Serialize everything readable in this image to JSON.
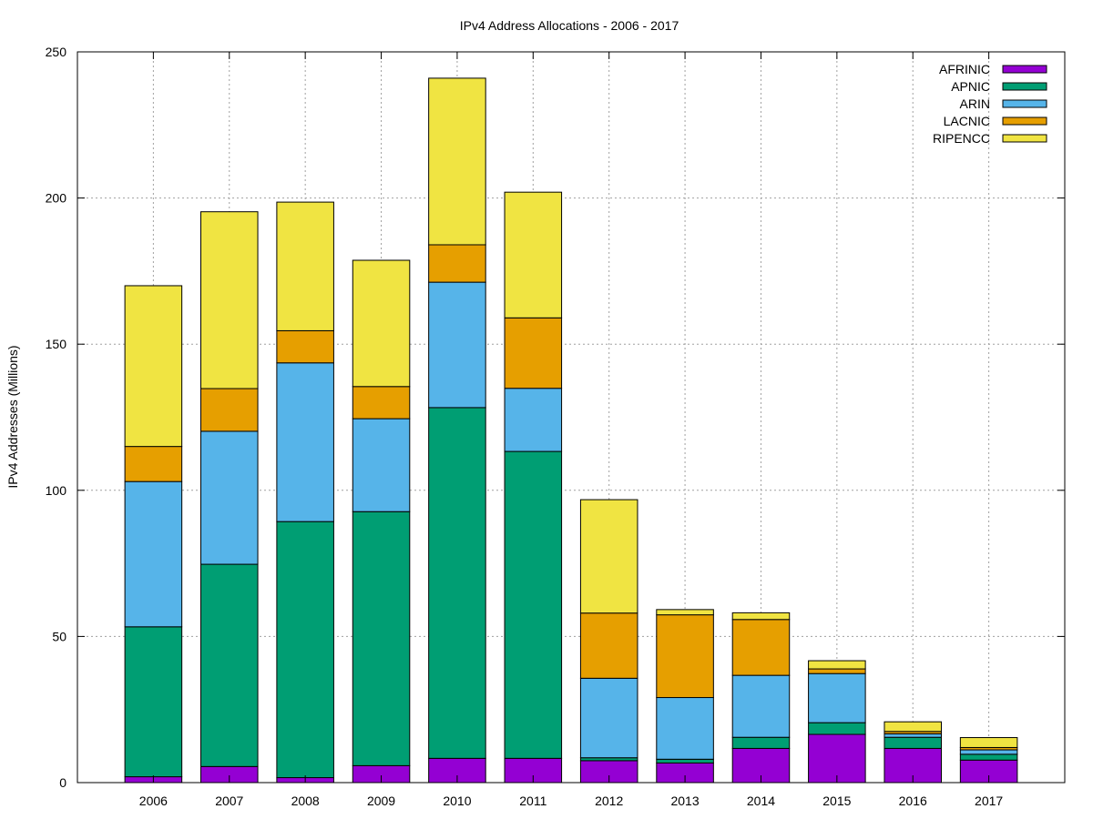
{
  "chart_data": {
    "type": "bar",
    "stacked": true,
    "title": "IPv4 Address Allocations - 2006 - 2017",
    "xlabel": "",
    "ylabel": "IPv4 Addresses (Millions)",
    "ylim": [
      0,
      250
    ],
    "yticks": [
      0,
      50,
      100,
      150,
      200,
      250
    ],
    "grid": true,
    "legend_position": "top-right",
    "categories": [
      "2006",
      "2007",
      "2008",
      "2009",
      "2010",
      "2011",
      "2012",
      "2013",
      "2014",
      "2015",
      "2016",
      "2017"
    ],
    "series": [
      {
        "name": "AFRINIC",
        "color": "#9400d3",
        "values": [
          2,
          5.5,
          1.7,
          5.8,
          8.3,
          8.3,
          7.5,
          6.7,
          11.7,
          16.5,
          11.7,
          7.7
        ]
      },
      {
        "name": "APNIC",
        "color": "#009e73",
        "values": [
          51.3,
          69.2,
          87.6,
          86.9,
          120,
          105,
          1,
          1.3,
          3.8,
          4,
          3.8,
          2
        ]
      },
      {
        "name": "ARIN",
        "color": "#56b4e9",
        "values": [
          49.7,
          45.5,
          54.3,
          31.8,
          42.9,
          21.6,
          27.2,
          21.1,
          21.2,
          16.8,
          1.2,
          1.5
        ]
      },
      {
        "name": "LACNIC",
        "color": "#e69f00",
        "values": [
          12,
          14.6,
          11,
          11,
          12.8,
          24.1,
          22.3,
          28.3,
          19.1,
          1.6,
          0.8,
          0.8
        ]
      },
      {
        "name": "RIPENCC",
        "color": "#f0e442",
        "values": [
          55,
          60.5,
          44,
          43.2,
          57,
          43,
          38.8,
          1.8,
          2.3,
          2.8,
          3.3,
          3.4
        ]
      }
    ]
  }
}
